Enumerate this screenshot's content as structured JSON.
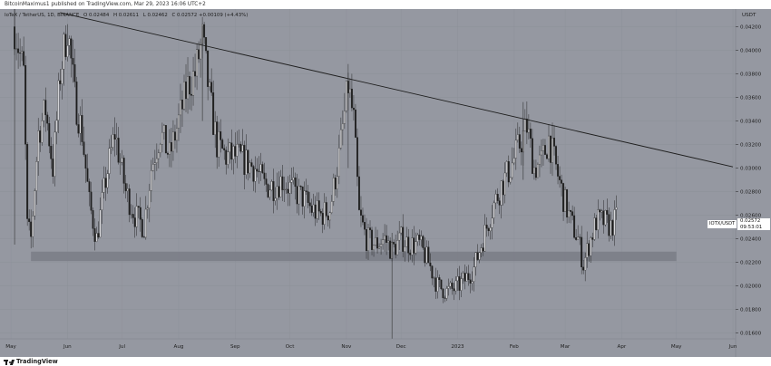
{
  "header": {
    "publish_line": "BitcoinMaximus1 published on TradingView.com, Mar 29, 2023 16:06 UTC+2"
  },
  "legend": {
    "pair": "IoTeX / TetherUS, 1D, BINANCE",
    "open": "O 0.02484",
    "high": "H 0.02611",
    "low": "L 0.02462",
    "close": "C 0.02572 +0.00109 (+4.43%)"
  },
  "axis": {
    "currency": "USDT",
    "y_labels": [
      "0.04200",
      "0.04000",
      "0.03800",
      "0.03600",
      "0.03400",
      "0.03200",
      "0.03000",
      "0.02800",
      "0.02600",
      "0.02400",
      "0.02200",
      "0.02000",
      "0.01800",
      "0.01600"
    ],
    "x_labels": [
      "May",
      "Jun",
      "Jul",
      "Aug",
      "Sep",
      "Oct",
      "Nov",
      "Dec",
      "2023",
      "Feb",
      "Mar",
      "Apr",
      "May",
      "Jun"
    ]
  },
  "price_tag": {
    "symbol": "IOTX/USDT",
    "price": "0.02572",
    "countdown": "09:53:01"
  },
  "footer": {
    "brand": "TradingView"
  },
  "chart_data": {
    "type": "candlestick",
    "symbol": "IOTXUSDT",
    "interval": "1D",
    "ylim": [
      0.0155,
      0.0435
    ],
    "support_zone": [
      0.0221,
      0.0229
    ],
    "descending_trendline": [
      {
        "date": "2022-05-28",
        "price": 0.0432
      },
      {
        "date": "2023-06-01",
        "price": 0.0301
      }
    ],
    "price_path": [
      [
        "2022-05-03",
        0.042
      ],
      [
        "2022-05-08",
        0.038
      ],
      [
        "2022-05-10",
        0.025
      ],
      [
        "2022-05-12",
        0.024
      ],
      [
        "2022-05-16",
        0.033
      ],
      [
        "2022-05-20",
        0.035
      ],
      [
        "2022-05-24",
        0.03
      ],
      [
        "2022-05-28",
        0.038
      ],
      [
        "2022-06-01",
        0.042
      ],
      [
        "2022-06-05",
        0.036
      ],
      [
        "2022-06-09",
        0.033
      ],
      [
        "2022-06-13",
        0.027
      ],
      [
        "2022-06-17",
        0.024
      ],
      [
        "2022-06-22",
        0.029
      ],
      [
        "2022-06-27",
        0.033
      ],
      [
        "2022-07-03",
        0.028
      ],
      [
        "2022-07-08",
        0.026
      ],
      [
        "2022-07-13",
        0.025
      ],
      [
        "2022-07-17",
        0.03
      ],
      [
        "2022-07-22",
        0.033
      ],
      [
        "2022-07-27",
        0.031
      ],
      [
        "2022-08-01",
        0.034
      ],
      [
        "2022-08-06",
        0.037
      ],
      [
        "2022-08-10",
        0.038
      ],
      [
        "2022-08-14",
        0.041
      ],
      [
        "2022-08-18",
        0.036
      ],
      [
        "2022-08-22",
        0.032
      ],
      [
        "2022-08-27",
        0.031
      ],
      [
        "2022-09-02",
        0.031
      ],
      [
        "2022-09-07",
        0.0305
      ],
      [
        "2022-09-12",
        0.03
      ],
      [
        "2022-09-17",
        0.0285
      ],
      [
        "2022-09-22",
        0.0285
      ],
      [
        "2022-09-27",
        0.029
      ],
      [
        "2022-10-03",
        0.028
      ],
      [
        "2022-10-08",
        0.0275
      ],
      [
        "2022-10-13",
        0.0265
      ],
      [
        "2022-10-18",
        0.026
      ],
      [
        "2022-10-23",
        0.0265
      ],
      [
        "2022-10-28",
        0.031
      ],
      [
        "2022-11-02",
        0.037
      ],
      [
        "2022-11-05",
        0.034
      ],
      [
        "2022-11-08",
        0.026
      ],
      [
        "2022-11-12",
        0.024
      ],
      [
        "2022-11-17",
        0.0235
      ],
      [
        "2022-11-22",
        0.024
      ],
      [
        "2022-11-26",
        0.023
      ],
      [
        "2022-12-01",
        0.024
      ],
      [
        "2022-12-06",
        0.0235
      ],
      [
        "2022-12-11",
        0.0235
      ],
      [
        "2022-12-16",
        0.022
      ],
      [
        "2022-12-21",
        0.02
      ],
      [
        "2022-12-26",
        0.0195
      ],
      [
        "2022-12-31",
        0.0198
      ],
      [
        "2023-01-05",
        0.0205
      ],
      [
        "2023-01-10",
        0.0215
      ],
      [
        "2023-01-15",
        0.024
      ],
      [
        "2023-01-20",
        0.0265
      ],
      [
        "2023-01-25",
        0.0285
      ],
      [
        "2023-01-30",
        0.03
      ],
      [
        "2023-02-04",
        0.032
      ],
      [
        "2023-02-08",
        0.0335
      ],
      [
        "2023-02-12",
        0.03
      ],
      [
        "2023-02-16",
        0.0305
      ],
      [
        "2023-02-20",
        0.0325
      ],
      [
        "2023-02-24",
        0.03
      ],
      [
        "2023-02-28",
        0.0275
      ],
      [
        "2023-03-04",
        0.0255
      ],
      [
        "2023-03-08",
        0.024
      ],
      [
        "2023-03-11",
        0.0218
      ],
      [
        "2023-03-14",
        0.0235
      ],
      [
        "2023-03-18",
        0.0255
      ],
      [
        "2023-03-22",
        0.0255
      ],
      [
        "2023-03-26",
        0.025
      ],
      [
        "2023-03-29",
        0.0257
      ]
    ]
  }
}
